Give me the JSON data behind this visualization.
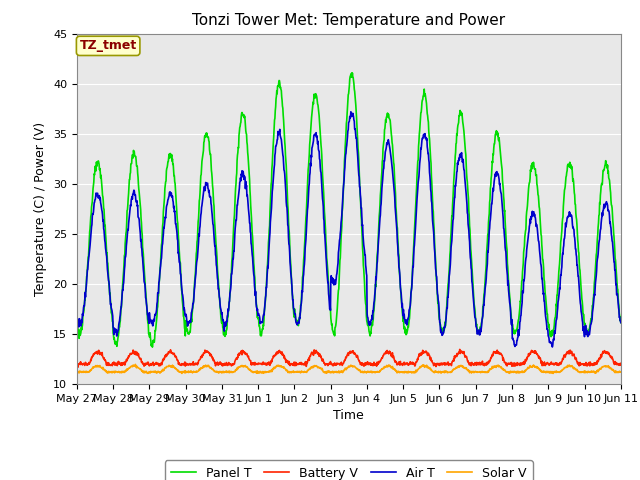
{
  "title": "Tonzi Tower Met: Temperature and Power",
  "xlabel": "Time",
  "ylabel": "Temperature (C) / Power (V)",
  "ylim": [
    10,
    45
  ],
  "xlim": [
    0,
    15
  ],
  "annotation_text": "TZ_tmet",
  "annotation_color": "#8B0000",
  "annotation_bg": "#FFFFCC",
  "annotation_border": "#999900",
  "background_plot": "#E8E8E8",
  "background_fig": "#FFFFFF",
  "grid_color": "#FFFFFF",
  "xtick_labels": [
    "May 27",
    "May 28",
    "May 29",
    "May 30",
    "May 31",
    "Jun 1",
    "Jun 2",
    "Jun 3",
    "Jun 4",
    "Jun 5",
    "Jun 6",
    "Jun 7",
    "Jun 8",
    "Jun 9",
    "Jun 10",
    "Jun 11"
  ],
  "xtick_positions": [
    0,
    1,
    2,
    3,
    4,
    5,
    6,
    7,
    8,
    9,
    10,
    11,
    12,
    13,
    14,
    15
  ],
  "ytick_positions": [
    10,
    15,
    20,
    25,
    30,
    35,
    40,
    45
  ],
  "line_colors": {
    "panel_t": "#00DD00",
    "battery_v": "#FF2200",
    "air_t": "#0000CC",
    "solar_v": "#FFA500"
  },
  "line_widths": {
    "panel_t": 1.2,
    "battery_v": 1.2,
    "air_t": 1.2,
    "solar_v": 1.2
  },
  "legend_labels": [
    "Panel T",
    "Battery V",
    "Air T",
    "Solar V"
  ],
  "title_fontsize": 11,
  "axis_fontsize": 9,
  "tick_fontsize": 8,
  "panel_t_peaks": [
    32,
    33,
    33,
    35,
    37,
    40,
    39,
    41,
    37,
    39,
    37,
    35,
    32,
    32
  ],
  "panel_t_mins": [
    15,
    14,
    14,
    15,
    15,
    15,
    16,
    15,
    15,
    15,
    15,
    15,
    15,
    15
  ],
  "air_t_peaks": [
    29,
    29,
    29,
    30,
    31,
    35,
    35,
    37,
    34,
    35,
    33,
    31,
    27,
    27
  ],
  "air_t_mins": [
    16,
    15,
    16,
    16,
    16,
    16,
    16,
    20,
    16,
    16,
    15,
    15,
    14,
    14
  ],
  "battery_v_base": 12.0,
  "battery_v_bump": 1.2,
  "solar_v_base": 11.2,
  "solar_v_bump": 0.6
}
